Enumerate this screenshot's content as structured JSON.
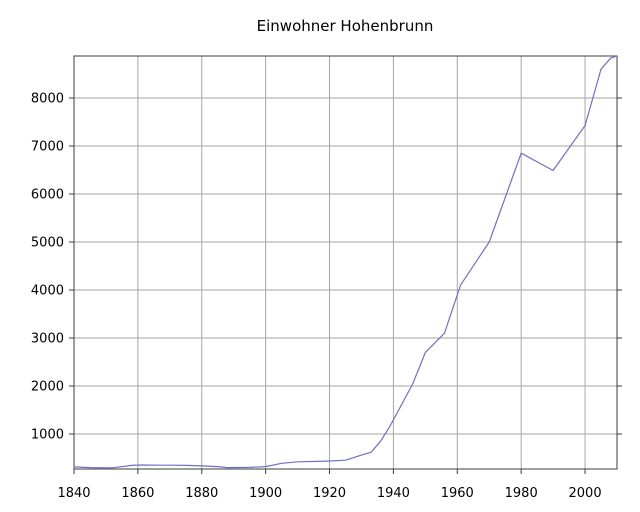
{
  "chart_data": {
    "type": "line",
    "title": "Einwohner Hohenbrunn",
    "xlabel": "",
    "ylabel": "",
    "xlim": [
      1840,
      2010
    ],
    "ylim": [
      271,
      8875
    ],
    "x_ticks": [
      1840,
      1860,
      1880,
      1900,
      1920,
      1940,
      1960,
      1980,
      2000
    ],
    "y_ticks": [
      1000,
      2000,
      3000,
      4000,
      5000,
      6000,
      7000,
      8000
    ],
    "grid": true,
    "legend": "none",
    "series": [
      {
        "name": "Einwohner",
        "points": [
          [
            1840,
            315
          ],
          [
            1845,
            300
          ],
          [
            1852,
            295
          ],
          [
            1858,
            345
          ],
          [
            1861,
            355
          ],
          [
            1867,
            350
          ],
          [
            1871,
            350
          ],
          [
            1875,
            345
          ],
          [
            1880,
            335
          ],
          [
            1885,
            320
          ],
          [
            1888,
            300
          ],
          [
            1895,
            305
          ],
          [
            1900,
            320
          ],
          [
            1905,
            390
          ],
          [
            1910,
            420
          ],
          [
            1916,
            430
          ],
          [
            1919,
            435
          ],
          [
            1925,
            455
          ],
          [
            1930,
            560
          ],
          [
            1933,
            620
          ],
          [
            1936,
            850
          ],
          [
            1939,
            1170
          ],
          [
            1946,
            2040
          ],
          [
            1950,
            2700
          ],
          [
            1956,
            3100
          ],
          [
            1961,
            4100
          ],
          [
            1970,
            5000
          ],
          [
            1980,
            6850
          ],
          [
            1990,
            6490
          ],
          [
            2000,
            7430
          ],
          [
            2005,
            8600
          ],
          [
            2008,
            8830
          ],
          [
            2010,
            8880
          ]
        ]
      }
    ],
    "colors": {
      "line": "#7070c8",
      "grid": "#a6a6a6",
      "frame": "#3c3c3c",
      "text": "#000000",
      "background": "#ffffff"
    }
  }
}
